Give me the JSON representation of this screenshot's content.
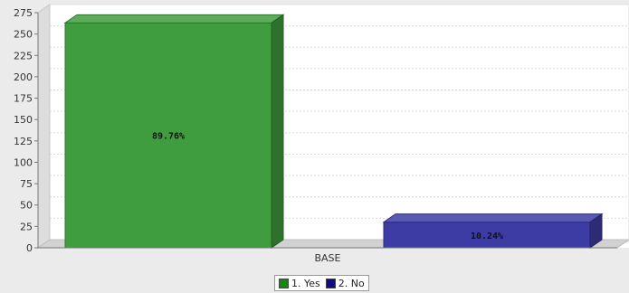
{
  "chart_data": {
    "type": "bar",
    "categories": [
      "BASE"
    ],
    "series": [
      {
        "name": "1. Yes",
        "values": [
          263
        ],
        "label": "89.76%",
        "color": "#3f9d3f"
      },
      {
        "name": "2. No",
        "values": [
          30
        ],
        "label": "10.24%",
        "color": "#3c3ca4"
      }
    ],
    "ylim": [
      0,
      275
    ],
    "yticks": [
      "0",
      "25",
      "50",
      "75",
      "100",
      "125",
      "150",
      "175",
      "200",
      "225",
      "250",
      "275"
    ],
    "grid": true,
    "legend_position": "bottom-center"
  }
}
